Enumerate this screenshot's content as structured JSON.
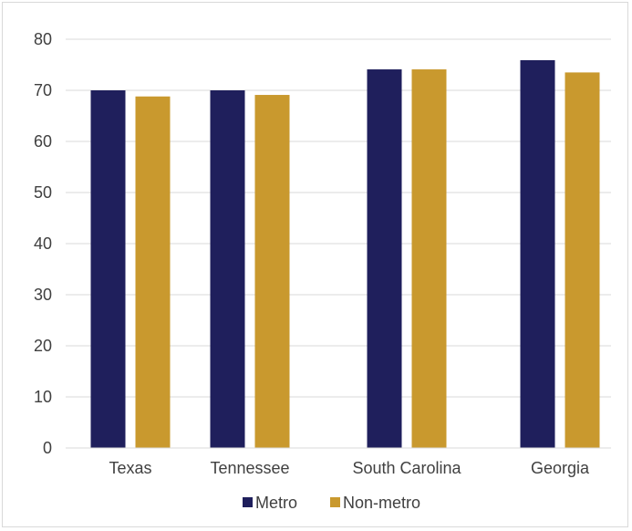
{
  "chart_data": {
    "type": "bar",
    "categories": [
      "Texas",
      "Tennessee",
      "South Carolina",
      "Georgia"
    ],
    "series": [
      {
        "name": "Metro",
        "values": [
          70.0,
          70.0,
          74.1,
          75.9
        ],
        "color": "#1f1f5c"
      },
      {
        "name": "Non-metro",
        "values": [
          68.8,
          69.1,
          74.1,
          73.5
        ],
        "color": "#c9992e"
      }
    ],
    "title": "",
    "xlabel": "",
    "ylabel": "",
    "ylim": [
      0,
      80
    ],
    "yticks": [
      0,
      10,
      20,
      30,
      40,
      50,
      60,
      70,
      80
    ],
    "grid": true,
    "gridline_color": "#d9d9d9",
    "legend_position": "bottom"
  }
}
